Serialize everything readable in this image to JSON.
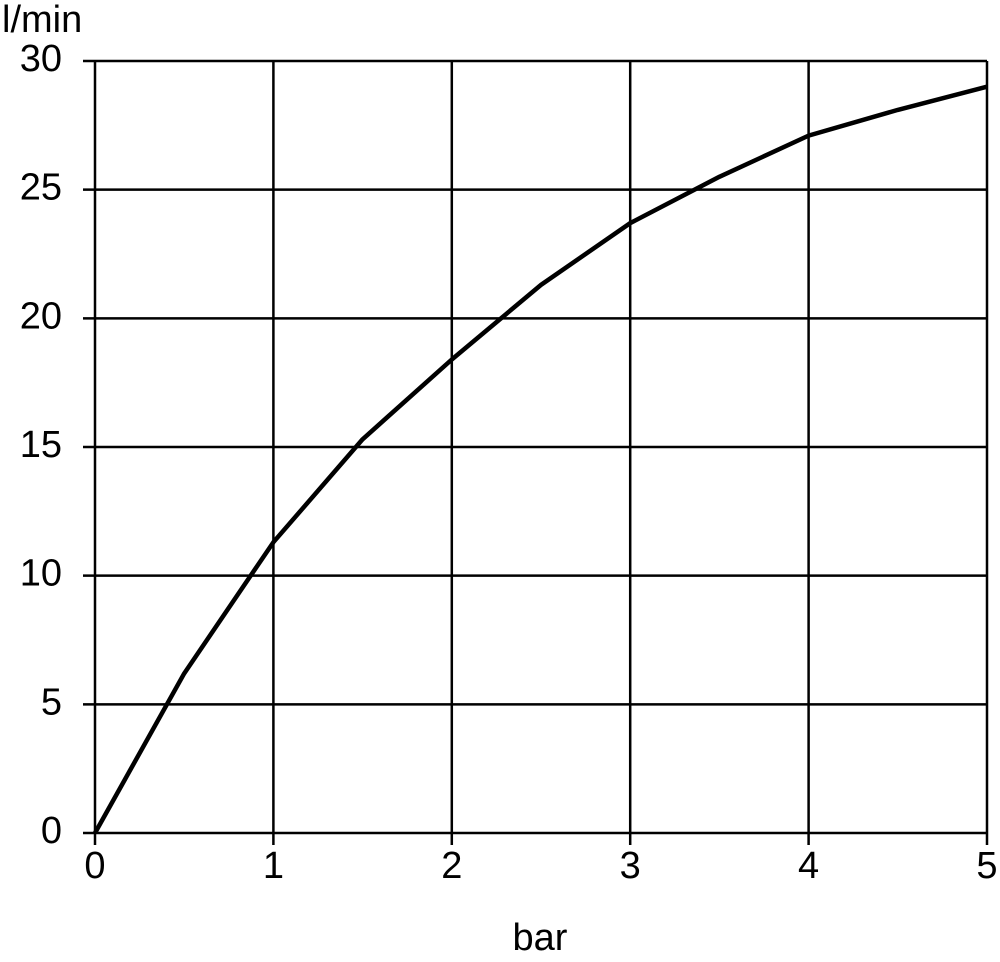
{
  "chart_data": {
    "type": "line",
    "x_label": "bar",
    "y_label": "l/min",
    "series": [
      {
        "color": "#000000",
        "x": [
          0,
          0.5,
          1,
          1.5,
          2,
          2.5,
          3,
          3.5,
          4,
          4.5,
          5
        ],
        "values": [
          0,
          6.2,
          11.3,
          15.3,
          18.4,
          21.3,
          23.7,
          25.5,
          27.1,
          28.1,
          29.0
        ]
      }
    ],
    "xlim": [
      0,
      5
    ],
    "xticks": [
      0,
      1,
      2,
      3,
      4,
      5
    ],
    "ylim": [
      0,
      30
    ],
    "yticks": [
      0,
      5,
      10,
      15,
      20,
      25,
      30
    ],
    "grid": true
  }
}
